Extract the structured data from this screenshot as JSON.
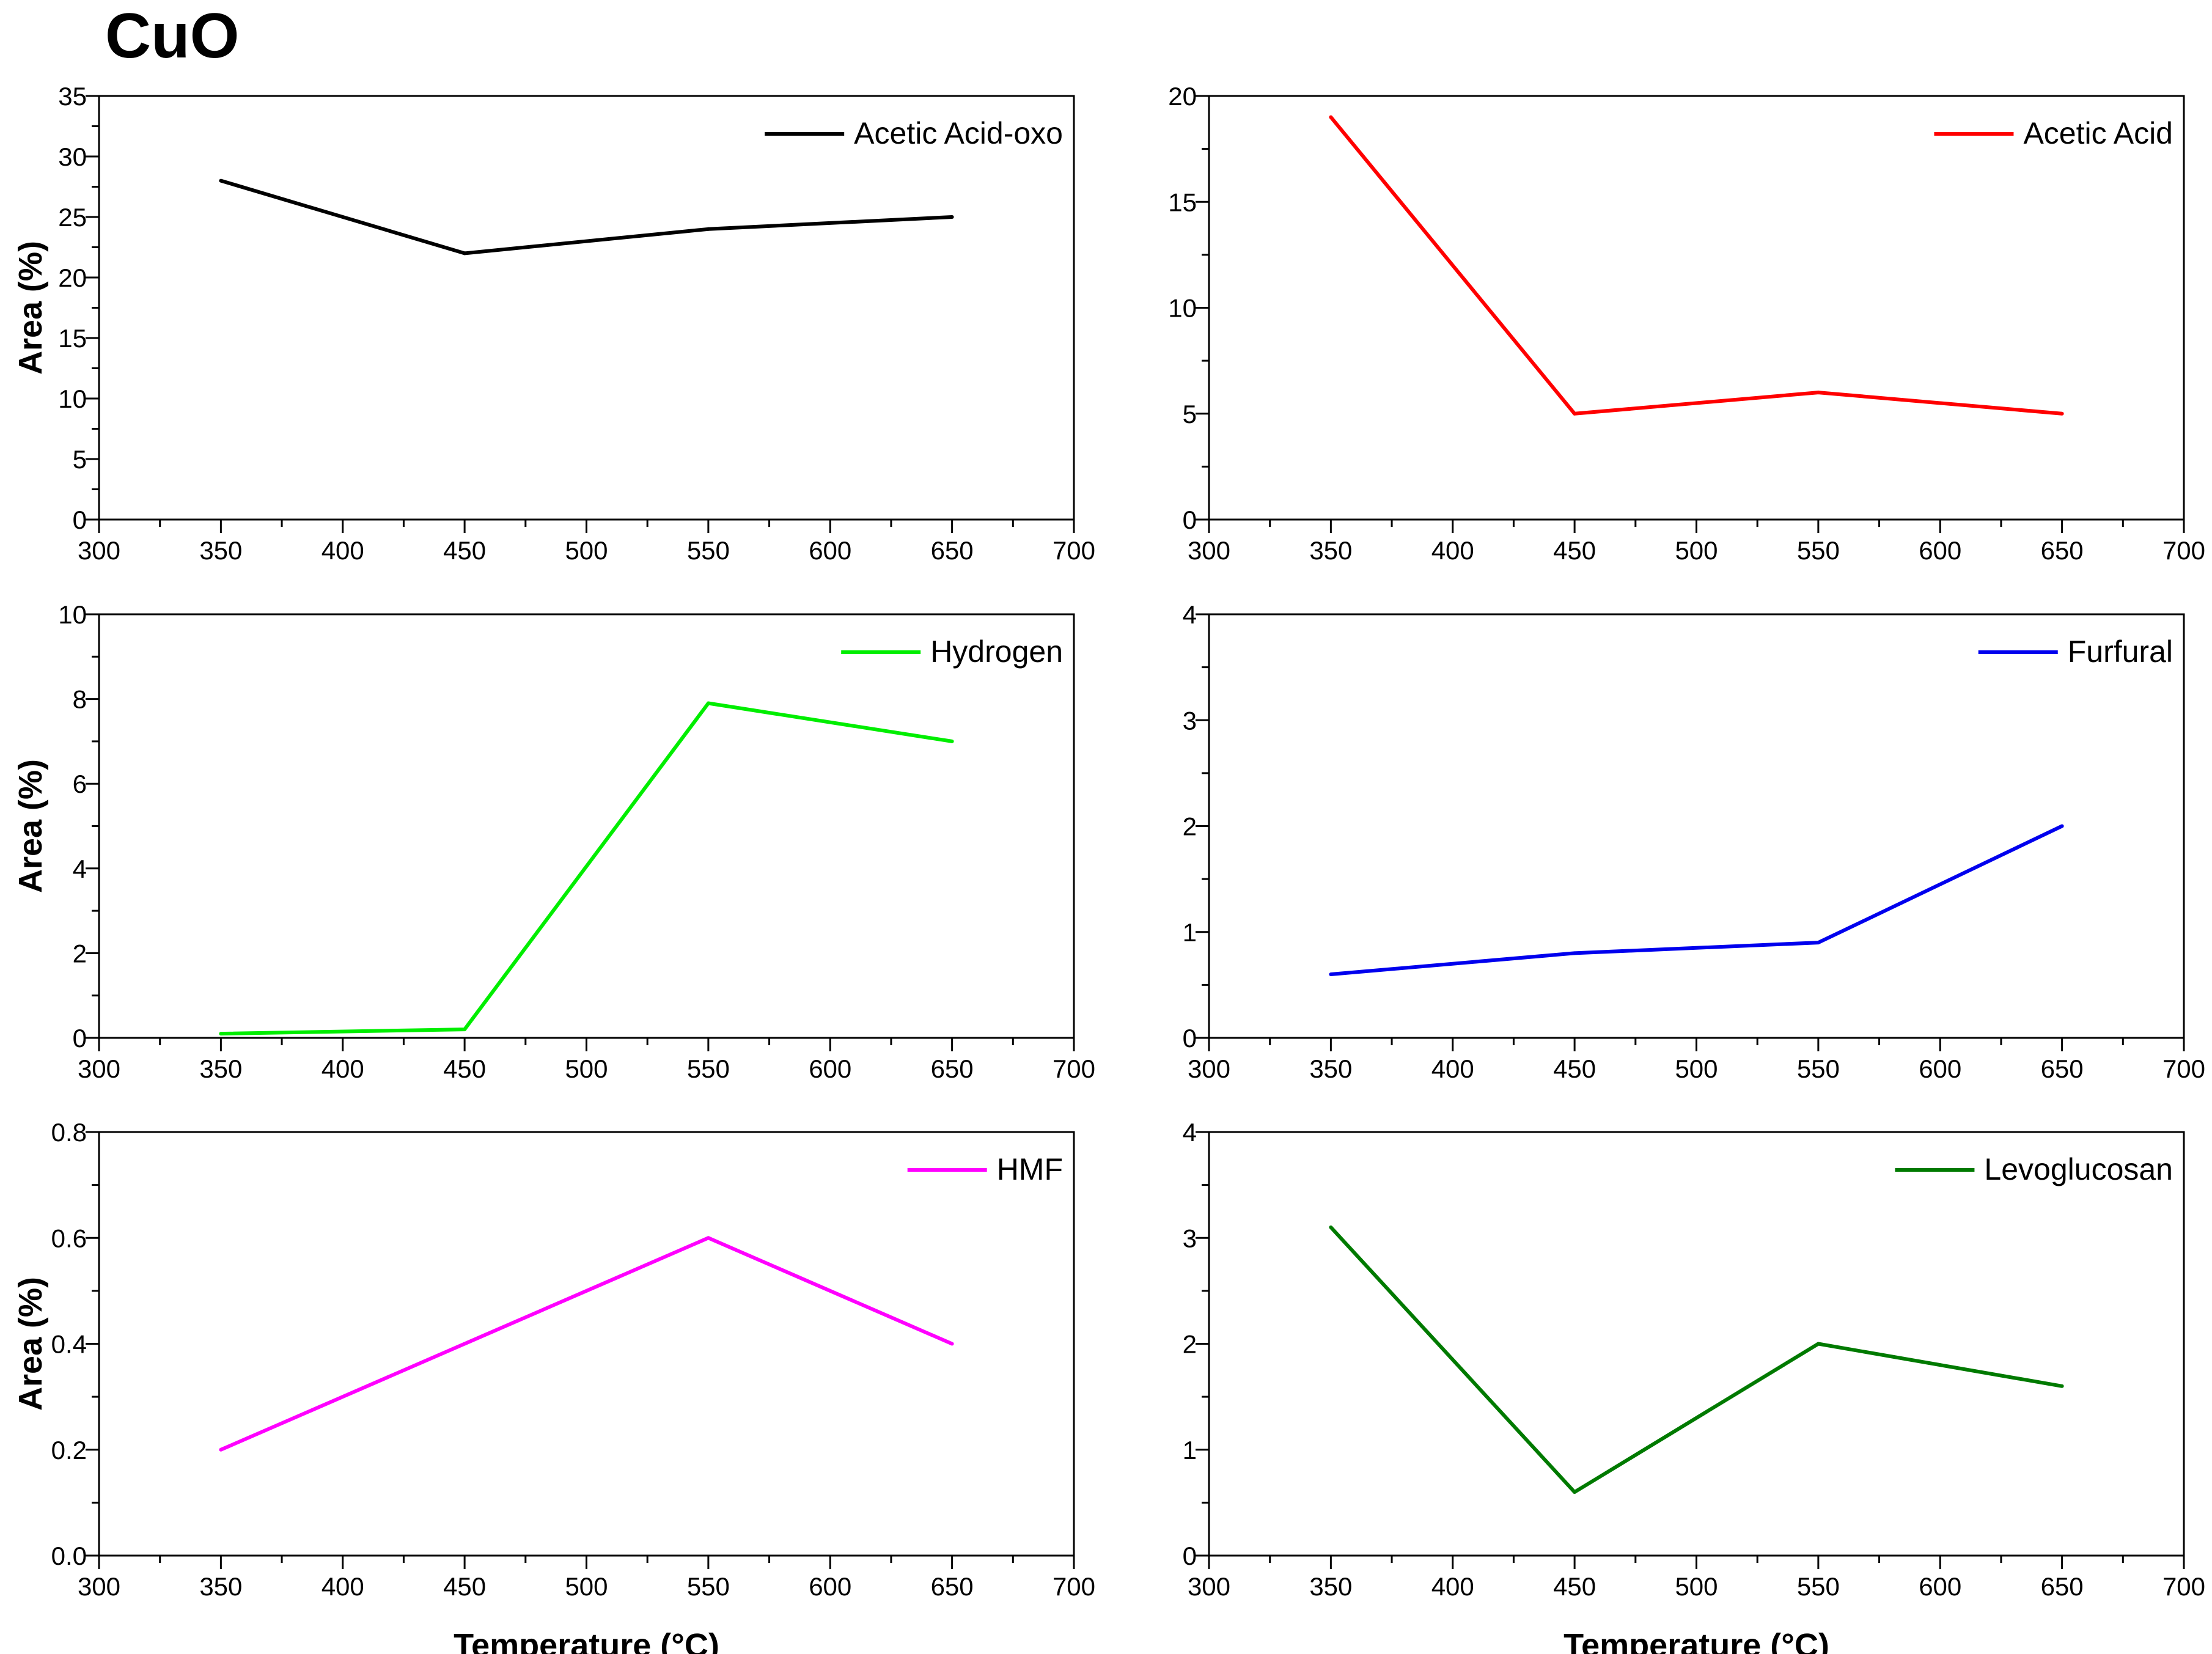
{
  "figure": {
    "title": "CuO"
  },
  "chart_data": [
    {
      "type": "line",
      "title": "",
      "legend": "Acetic Acid-oxo",
      "legend_position": "top-right",
      "color": "#000000",
      "x": [
        350,
        450,
        550,
        650
      ],
      "values": [
        28,
        22,
        24,
        25
      ],
      "xlim": [
        300,
        700
      ],
      "ylim": [
        0,
        35
      ],
      "xticks": [
        300,
        350,
        400,
        450,
        500,
        550,
        600,
        650,
        700
      ],
      "yticks": [
        0,
        5,
        10,
        15,
        20,
        25,
        30,
        35
      ],
      "xlabel": "",
      "ylabel": "Area (%)"
    },
    {
      "type": "line",
      "title": "",
      "legend": "Acetic Acid",
      "legend_position": "top-right",
      "color": "#ff0000",
      "x": [
        350,
        450,
        550,
        650
      ],
      "values": [
        19,
        5,
        6,
        5
      ],
      "xlim": [
        300,
        700
      ],
      "ylim": [
        0,
        20
      ],
      "xticks": [
        300,
        350,
        400,
        450,
        500,
        550,
        600,
        650,
        700
      ],
      "yticks": [
        0,
        5,
        10,
        15,
        20
      ],
      "xlabel": "",
      "ylabel": ""
    },
    {
      "type": "line",
      "title": "",
      "legend": "Hydrogen",
      "legend_position": "top-right",
      "color": "#00ee00",
      "x": [
        350,
        450,
        550,
        650
      ],
      "values": [
        0.1,
        0.2,
        7.9,
        7.0
      ],
      "xlim": [
        300,
        700
      ],
      "ylim": [
        0,
        10
      ],
      "xticks": [
        300,
        350,
        400,
        450,
        500,
        550,
        600,
        650,
        700
      ],
      "yticks": [
        0,
        2,
        4,
        6,
        8,
        10
      ],
      "xlabel": "",
      "ylabel": "Area (%)"
    },
    {
      "type": "line",
      "title": "",
      "legend": "Furfural",
      "legend_position": "top-right",
      "color": "#0000ee",
      "x": [
        350,
        450,
        550,
        650
      ],
      "values": [
        0.6,
        0.8,
        0.9,
        2.0
      ],
      "xlim": [
        300,
        700
      ],
      "ylim": [
        0,
        4
      ],
      "xticks": [
        300,
        350,
        400,
        450,
        500,
        550,
        600,
        650,
        700
      ],
      "yticks": [
        0,
        1,
        2,
        3,
        4
      ],
      "xlabel": "",
      "ylabel": ""
    },
    {
      "type": "line",
      "title": "",
      "legend": "HMF",
      "legend_position": "top-right",
      "color": "#ff00ff",
      "x": [
        350,
        450,
        550,
        650
      ],
      "values": [
        0.2,
        0.4,
        0.6,
        0.4
      ],
      "xlim": [
        300,
        700
      ],
      "ylim": [
        0,
        0.8
      ],
      "xticks": [
        300,
        350,
        400,
        450,
        500,
        550,
        600,
        650,
        700
      ],
      "yticks": [
        "0.0",
        "0.2",
        "0.4",
        "0.6",
        "0.8"
      ],
      "xlabel": "Temperature (°C)",
      "ylabel": "Area (%)"
    },
    {
      "type": "line",
      "title": "",
      "legend": "Levoglucosan",
      "legend_position": "top-right",
      "color": "#007a00",
      "x": [
        350,
        450,
        550,
        650
      ],
      "values": [
        3.1,
        0.6,
        2.0,
        1.6
      ],
      "xlim": [
        300,
        700
      ],
      "ylim": [
        0,
        4
      ],
      "xticks": [
        300,
        350,
        400,
        450,
        500,
        550,
        600,
        650,
        700
      ],
      "yticks": [
        0,
        1,
        2,
        3,
        4
      ],
      "xlabel": "Temperature (°C)",
      "ylabel": ""
    }
  ]
}
